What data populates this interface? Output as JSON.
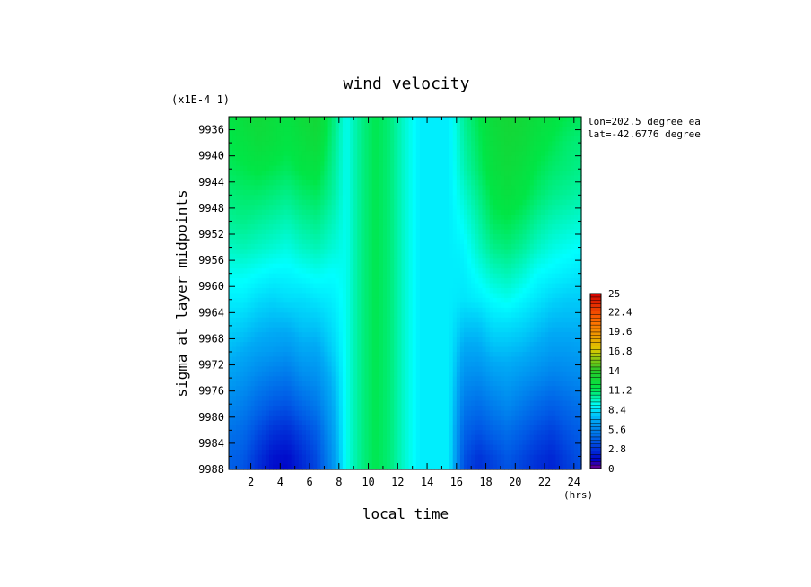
{
  "chart_data": {
    "type": "heatmap",
    "title": "wind velocity",
    "xlabel": "local time",
    "ylabel": "sigma at layer midpoints",
    "x_unit": "(hrs)",
    "y_scale_note": "(x1E-4 1)",
    "annotations": [
      "lon=202.5 degree_ea",
      "lat=-42.6776 degree"
    ],
    "xlim": [
      0.5,
      24.5
    ],
    "ylim": [
      9934,
      9988
    ],
    "y_reversed": true,
    "x_ticks": [
      "2",
      "4",
      "6",
      "8",
      "10",
      "12",
      "14",
      "16",
      "18",
      "20",
      "22",
      "24"
    ],
    "y_ticks": [
      "9936",
      "9940",
      "9944",
      "9948",
      "9952",
      "9956",
      "9960",
      "9964",
      "9968",
      "9972",
      "9976",
      "9980",
      "9984",
      "9988"
    ],
    "x": [
      0.5,
      1.5,
      2.5,
      3.5,
      4.5,
      5.5,
      6.5,
      7.5,
      8.5,
      9.5,
      10.5,
      11.5,
      12.5,
      13.5,
      14.5,
      15.5,
      16.5,
      17.5,
      18.5,
      19.5,
      20.5,
      21.5,
      22.5,
      23.5,
      24.5
    ],
    "y": [
      9934,
      9938,
      9942,
      9946,
      9950,
      9954,
      9958,
      9962,
      9966,
      9970,
      9974,
      9978,
      9982,
      9986,
      9988
    ],
    "z": [
      [
        11.6,
        12.2,
        12.6,
        12.2,
        11.8,
        12.4,
        12.8,
        11.0,
        9.2,
        10.6,
        11.4,
        10.8,
        9.6,
        8.6,
        8.6,
        8.6,
        10.4,
        11.4,
        12.4,
        12.8,
        12.6,
        12.2,
        11.8,
        11.4,
        11.2
      ],
      [
        11.4,
        11.8,
        12.2,
        12.0,
        11.6,
        12.0,
        12.4,
        10.8,
        9.2,
        10.6,
        11.4,
        10.8,
        9.6,
        8.6,
        8.6,
        8.6,
        10.2,
        11.2,
        12.2,
        12.6,
        12.4,
        11.8,
        11.4,
        11.0,
        10.8
      ],
      [
        11.2,
        11.4,
        11.6,
        11.4,
        11.2,
        11.6,
        11.8,
        10.6,
        9.2,
        10.6,
        11.4,
        10.8,
        9.6,
        8.6,
        8.6,
        8.6,
        10.0,
        11.0,
        12.0,
        12.4,
        12.0,
        11.4,
        11.0,
        10.8,
        10.6
      ],
      [
        10.8,
        11.0,
        11.0,
        10.8,
        10.6,
        11.0,
        11.2,
        10.4,
        9.2,
        10.6,
        11.4,
        10.8,
        9.6,
        8.6,
        8.6,
        8.6,
        9.6,
        10.6,
        11.6,
        12.0,
        11.6,
        11.0,
        10.6,
        10.4,
        10.2
      ],
      [
        10.4,
        10.6,
        10.4,
        10.2,
        10.0,
        10.4,
        10.6,
        10.0,
        9.2,
        10.6,
        11.4,
        10.8,
        9.6,
        8.6,
        8.6,
        8.6,
        9.2,
        10.2,
        11.2,
        11.4,
        11.0,
        10.4,
        10.0,
        9.8,
        9.6
      ],
      [
        9.8,
        10.0,
        9.8,
        9.6,
        9.4,
        9.8,
        10.0,
        9.6,
        9.2,
        10.6,
        11.4,
        10.8,
        9.6,
        8.6,
        8.6,
        8.6,
        8.8,
        9.8,
        10.6,
        10.8,
        10.4,
        9.8,
        9.4,
        9.2,
        9.0
      ],
      [
        9.2,
        9.2,
        9.0,
        8.8,
        8.8,
        9.0,
        9.2,
        9.0,
        9.2,
        10.6,
        11.4,
        10.8,
        9.6,
        8.6,
        8.6,
        8.6,
        8.6,
        9.2,
        9.8,
        10.0,
        9.6,
        9.0,
        8.8,
        8.6,
        8.4
      ],
      [
        8.6,
        8.6,
        8.2,
        8.0,
        8.2,
        8.2,
        8.4,
        8.6,
        9.2,
        10.6,
        11.4,
        10.8,
        9.6,
        8.6,
        8.6,
        8.6,
        8.4,
        8.6,
        9.0,
        9.2,
        8.8,
        8.4,
        8.0,
        7.8,
        7.8
      ],
      [
        8.0,
        7.8,
        7.4,
        7.2,
        7.2,
        7.6,
        7.6,
        8.2,
        9.2,
        10.6,
        11.4,
        10.8,
        9.6,
        8.6,
        8.6,
        8.6,
        7.6,
        7.6,
        8.2,
        8.2,
        8.0,
        7.6,
        7.2,
        7.2,
        7.2
      ],
      [
        7.4,
        7.0,
        6.6,
        6.4,
        6.2,
        6.8,
        6.8,
        7.8,
        9.2,
        10.6,
        11.4,
        10.8,
        9.6,
        8.6,
        8.6,
        8.6,
        6.8,
        6.8,
        7.4,
        7.4,
        7.2,
        6.8,
        6.4,
        6.4,
        6.6
      ],
      [
        6.6,
        6.2,
        5.6,
        5.2,
        5.0,
        5.8,
        6.0,
        7.2,
        9.2,
        10.6,
        11.4,
        10.8,
        9.6,
        8.6,
        8.6,
        8.6,
        6.0,
        5.8,
        6.4,
        6.6,
        6.2,
        5.8,
        5.4,
        5.6,
        5.8
      ],
      [
        5.8,
        5.4,
        4.6,
        4.0,
        3.8,
        4.6,
        5.2,
        6.8,
        9.2,
        10.6,
        11.4,
        10.8,
        9.6,
        8.6,
        8.6,
        8.6,
        5.2,
        4.8,
        5.4,
        5.8,
        5.2,
        4.6,
        4.2,
        4.6,
        5.0
      ],
      [
        5.0,
        4.6,
        3.6,
        2.8,
        2.6,
        3.4,
        4.2,
        6.4,
        9.2,
        10.6,
        11.4,
        10.8,
        9.6,
        8.6,
        8.6,
        8.6,
        4.4,
        3.8,
        4.4,
        4.8,
        4.2,
        3.6,
        3.2,
        3.8,
        4.2
      ],
      [
        4.4,
        4.0,
        2.8,
        1.8,
        1.6,
        2.6,
        3.6,
        6.0,
        9.2,
        10.6,
        11.4,
        10.8,
        9.6,
        8.6,
        8.6,
        8.6,
        3.8,
        2.8,
        3.4,
        4.0,
        3.4,
        2.8,
        2.4,
        3.2,
        3.8
      ],
      [
        4.2,
        3.8,
        2.6,
        1.6,
        1.4,
        2.4,
        3.4,
        5.8,
        9.2,
        10.6,
        11.4,
        10.8,
        9.6,
        8.6,
        8.6,
        8.6,
        3.6,
        2.6,
        3.2,
        3.8,
        3.2,
        2.6,
        2.2,
        3.0,
        3.6
      ]
    ],
    "colorbar": {
      "range": [
        0,
        25
      ],
      "labels": [
        "25",
        "22.4",
        "19.6",
        "16.8",
        "14",
        "11.2",
        "8.4",
        "5.6",
        "2.8",
        "0"
      ]
    },
    "grid": false
  }
}
